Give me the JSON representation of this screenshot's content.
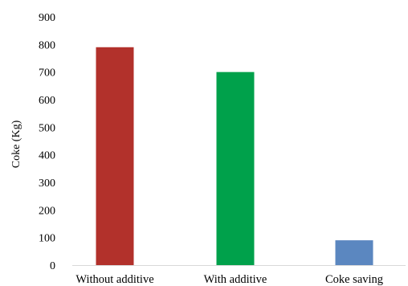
{
  "chart_data": {
    "type": "bar",
    "title": "",
    "xlabel": "",
    "ylabel": "Coke (Kg)",
    "ylim": [
      0,
      900
    ],
    "yticks": [
      0,
      100,
      200,
      300,
      400,
      500,
      600,
      700,
      800,
      900
    ],
    "grid": false,
    "legend": "none",
    "categories": [
      "Without additive",
      "With additive",
      "Coke saving"
    ],
    "values": [
      790,
      700,
      90
    ],
    "colors": [
      "#b2312b",
      "#00a14b",
      "#5b87c0"
    ]
  }
}
